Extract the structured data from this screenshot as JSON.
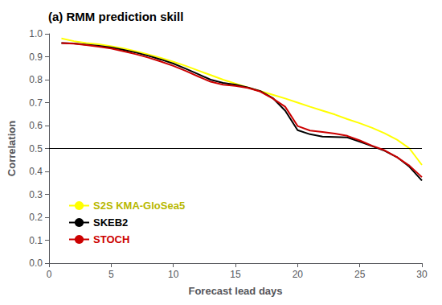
{
  "chart_data": {
    "type": "line",
    "title": "(a) RMM prediction skill",
    "xlabel": "Forecast lead days",
    "ylabel": "Correlation",
    "x": [
      1,
      2,
      3,
      4,
      5,
      6,
      7,
      8,
      9,
      10,
      11,
      12,
      13,
      14,
      15,
      16,
      17,
      18,
      19,
      20,
      21,
      22,
      23,
      24,
      25,
      26,
      27,
      28,
      29,
      30
    ],
    "series": [
      {
        "name": "S2S KMA-GloSea5",
        "color": "#ffff00",
        "values": [
          0.98,
          0.968,
          0.96,
          0.954,
          0.946,
          0.936,
          0.924,
          0.91,
          0.895,
          0.878,
          0.86,
          0.84,
          0.82,
          0.8,
          0.783,
          0.766,
          0.75,
          0.734,
          0.718,
          0.7,
          0.682,
          0.665,
          0.648,
          0.628,
          0.61,
          0.59,
          0.566,
          0.538,
          0.5,
          0.428
        ]
      },
      {
        "name": "SKEB2",
        "color": "#000000",
        "values": [
          0.96,
          0.958,
          0.953,
          0.947,
          0.94,
          0.93,
          0.918,
          0.904,
          0.888,
          0.87,
          0.848,
          0.824,
          0.8,
          0.786,
          0.778,
          0.766,
          0.75,
          0.72,
          0.665,
          0.58,
          0.562,
          0.552,
          0.55,
          0.548,
          0.53,
          0.51,
          0.49,
          0.462,
          0.42,
          0.36
        ]
      },
      {
        "name": "STOCH",
        "color": "#cc0000",
        "values": [
          0.96,
          0.957,
          0.951,
          0.944,
          0.936,
          0.924,
          0.911,
          0.896,
          0.879,
          0.86,
          0.838,
          0.814,
          0.791,
          0.778,
          0.773,
          0.764,
          0.748,
          0.718,
          0.682,
          0.598,
          0.578,
          0.572,
          0.565,
          0.555,
          0.535,
          0.512,
          0.492,
          0.462,
          0.425,
          0.375
        ]
      }
    ],
    "hline": 0.5,
    "xlim": [
      0,
      30
    ],
    "ylim": [
      0,
      1.0
    ],
    "xticks": [
      0,
      5,
      10,
      15,
      20,
      25,
      30
    ],
    "yticks": [
      {
        "value": 0,
        "label": "0.0"
      },
      0.1,
      0.2,
      0.3,
      0.4,
      0.5,
      0.6,
      0.7,
      0.8,
      0.9,
      {
        "value": 1.0,
        "label": "1.0"
      }
    ],
    "grid": false,
    "legend": "lower left"
  }
}
